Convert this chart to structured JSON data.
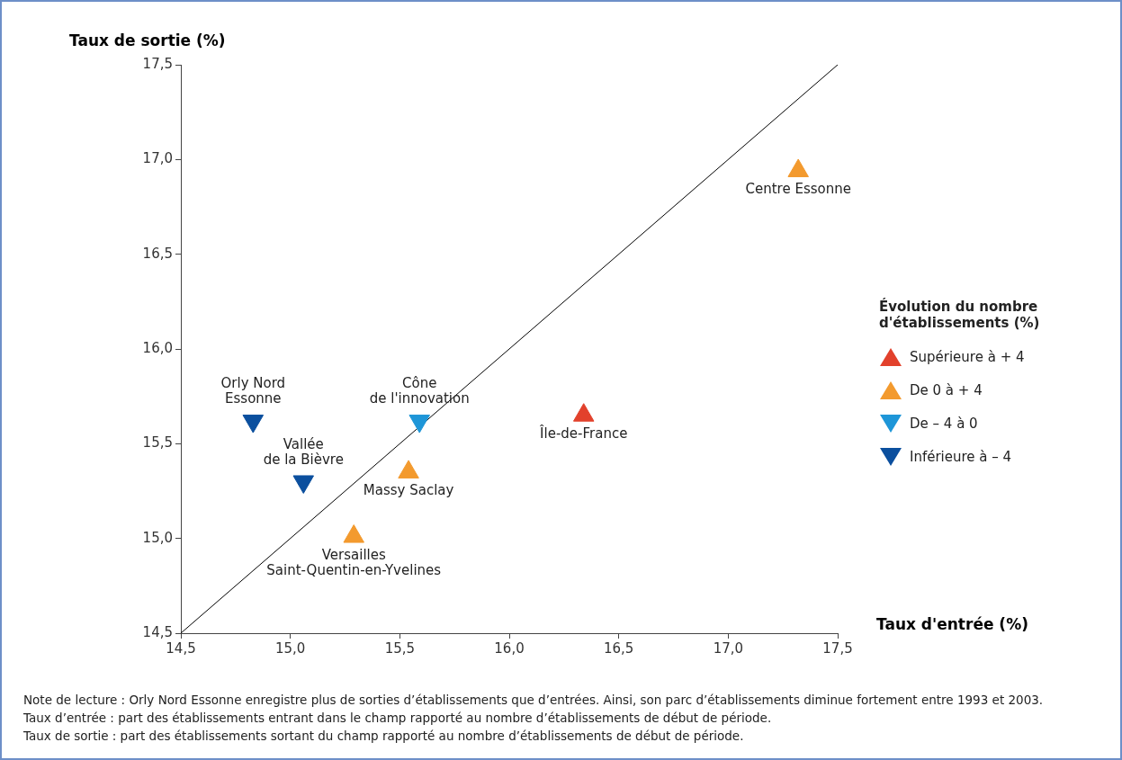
{
  "chart_data": {
    "type": "scatter",
    "xlabel": "Taux d'entrée (%)",
    "ylabel": "Taux de sortie (%)",
    "legend_title": "Évolution du nombre\nd'établissements (%)",
    "legend": "right",
    "grid": false,
    "xlim": [
      14.5,
      17.5
    ],
    "ylim": [
      14.5,
      17.5
    ],
    "xticks": [
      {
        "value": 14.5,
        "label": "14,5"
      },
      {
        "value": 15,
        "label": "15,0"
      },
      {
        "value": 15.5,
        "label": "15,5"
      },
      {
        "value": 16,
        "label": "16,0"
      },
      {
        "value": 16.5,
        "label": "16,5"
      },
      {
        "value": 17,
        "label": "17,0"
      },
      {
        "value": 17.5,
        "label": "17,5"
      }
    ],
    "yticks": [
      {
        "value": 14.5,
        "label": "14,5"
      },
      {
        "value": 15,
        "label": "15,0"
      },
      {
        "value": 15.5,
        "label": "15,5"
      },
      {
        "value": 16,
        "label": "16,0"
      },
      {
        "value": 16.5,
        "label": "16,5"
      },
      {
        "value": 17,
        "label": "17,0"
      },
      {
        "value": 17.5,
        "label": "17,5"
      }
    ],
    "series": [
      {
        "name": "Supérieure à + 4",
        "color": "#e2412c",
        "marker": "triangle",
        "x": [
          16.34
        ],
        "values": [
          15.65
        ]
      },
      {
        "name": "De 0 à + 4",
        "color": "#f39a2e",
        "marker": "triangle",
        "x": [
          17.32,
          15.54,
          15.29
        ],
        "values": [
          16.94,
          15.35,
          15.01
        ]
      },
      {
        "name": "De – 4 à 0",
        "color": "#1e96d8",
        "marker": "triangle-down",
        "x": [
          15.59
        ],
        "values": [
          15.62
        ]
      },
      {
        "name": "Inférieure à – 4",
        "color": "#0b4f9e",
        "marker": "triangle-down",
        "x": [
          14.83,
          15.06
        ],
        "values": [
          15.62,
          15.3
        ]
      },
      {
        "type": "line",
        "color": "#000000",
        "marker": "none",
        "x": [
          14.5,
          17.5
        ],
        "values": [
          14.5,
          17.5
        ]
      }
    ],
    "annotations": [
      {
        "text": "Centre Essonne",
        "x": 17.32,
        "y": 16.94
      },
      {
        "text": "Île-de-France",
        "x": 16.34,
        "y": 15.65
      },
      {
        "text": "Massy Saclay",
        "x": 15.54,
        "y": 15.35
      },
      {
        "text": "Versailles\nSaint-Quentin-en-Yvelines",
        "x": 15.29,
        "y": 15.01
      },
      {
        "text": "Cône\nde l'innovation",
        "x": 15.59,
        "y": 15.62
      },
      {
        "text": "Orly Nord\nEssonne",
        "x": 14.83,
        "y": 15.62
      },
      {
        "text": "Vallée\nde la Bièvre",
        "x": 15.06,
        "y": 15.3
      },
      "Note de lecture : Orly Nord Essonne enregistre plus de sorties d’établissements que d’entrées. Ainsi, son parc d’établissements diminue fortement entre 1993 et 2003.",
      "Taux d’entrée : part des établissements entrant dans le champ rapporté au nombre d’établissements de début de période.",
      "Taux de sortie : part des établissements sortant du champ rapporté au nombre d’établissements de début de période."
    ]
  }
}
